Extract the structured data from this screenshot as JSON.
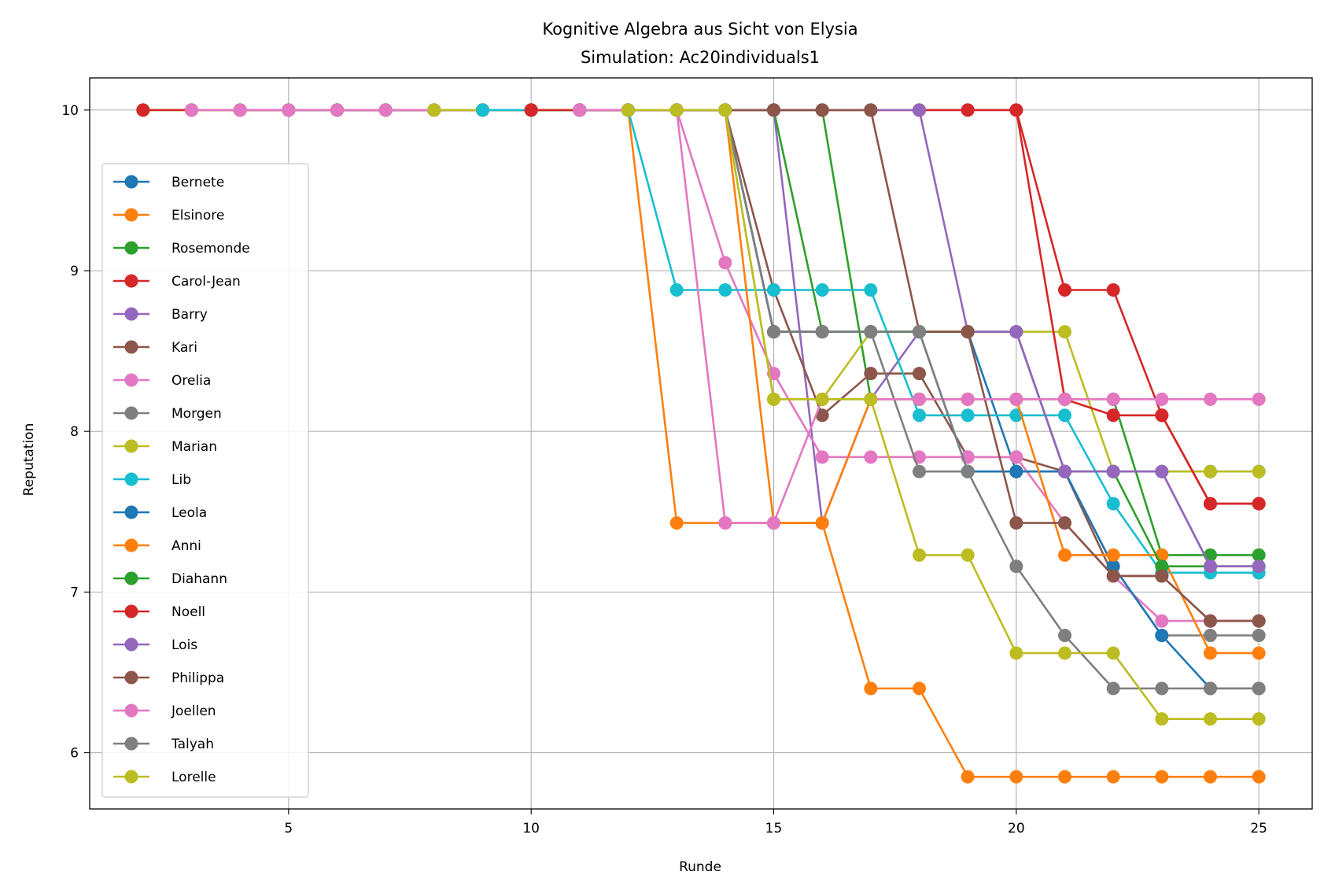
{
  "chart_data": {
    "type": "line",
    "title": "Kognitive Algebra aus Sicht von Elysia",
    "subtitle": "Simulation: Ac20individuals1",
    "xlabel": "Runde",
    "ylabel": "Reputation",
    "xlim": [
      0.9,
      26.1
    ],
    "ylim": [
      5.65,
      10.2
    ],
    "xticks": [
      5,
      10,
      15,
      20,
      25
    ],
    "yticks": [
      6,
      7,
      8,
      9,
      10
    ],
    "grid": true,
    "legend_position": "center-left",
    "series": [
      {
        "name": "Bernete",
        "color": "#1f77b4",
        "x": [
          4,
          5,
          6,
          7,
          8,
          9,
          10,
          11,
          12,
          13,
          14,
          15,
          16,
          17,
          18,
          19,
          20,
          21,
          22,
          23,
          24,
          25
        ],
        "y": [
          10,
          10,
          10,
          10,
          10,
          10,
          10,
          10,
          10,
          10,
          10,
          8.62,
          8.62,
          8.62,
          8.62,
          8.62,
          7.75,
          7.75,
          7.75,
          7.75,
          7.75,
          7.75
        ]
      },
      {
        "name": "Elsinore",
        "color": "#ff7f0e",
        "x": [
          2,
          3,
          4,
          5,
          6,
          7,
          8,
          9,
          10,
          11,
          12,
          13,
          14,
          15,
          16,
          17,
          18,
          19,
          20,
          21,
          22,
          23,
          24,
          25
        ],
        "y": [
          10,
          10,
          10,
          10,
          10,
          10,
          10,
          10,
          10,
          10,
          10,
          7.43,
          7.43,
          7.43,
          7.43,
          6.4,
          6.4,
          5.85,
          5.85,
          5.85,
          5.85,
          5.85,
          5.85,
          5.85
        ]
      },
      {
        "name": "Rosemonde",
        "color": "#2ca02c",
        "x": [
          2,
          3,
          4,
          5,
          6,
          7,
          8,
          9,
          10,
          11,
          12,
          13,
          14,
          15,
          16,
          17,
          18,
          19,
          20,
          21,
          22,
          23,
          24,
          25
        ],
        "y": [
          10,
          10,
          10,
          10,
          10,
          10,
          10,
          10,
          10,
          10,
          10,
          10,
          10,
          10,
          10,
          8.2,
          8.2,
          8.2,
          8.2,
          8.2,
          8.2,
          7.23,
          7.23,
          7.23
        ]
      },
      {
        "name": "Carol-Jean",
        "color": "#d62728",
        "x": [
          2,
          3,
          4,
          5,
          6,
          7,
          8,
          9,
          10,
          11,
          12,
          13,
          14,
          15,
          16,
          17,
          18,
          19,
          20,
          21,
          22,
          23,
          24,
          25
        ],
        "y": [
          10,
          10,
          10,
          10,
          10,
          10,
          10,
          10,
          10,
          10,
          10,
          10,
          10,
          10,
          10,
          10,
          10,
          10,
          10,
          8.88,
          8.88,
          8.1,
          7.55,
          7.55
        ]
      },
      {
        "name": "Barry",
        "color": "#9467bd",
        "x": [
          5,
          6,
          7,
          8,
          9,
          10,
          11,
          12,
          13,
          14,
          15,
          16,
          17,
          18,
          19,
          20,
          21,
          22,
          23,
          24,
          25
        ],
        "y": [
          10,
          10,
          10,
          10,
          10,
          10,
          10,
          10,
          10,
          10,
          10,
          7.43,
          8.2,
          8.62,
          8.62,
          8.62,
          7.75,
          7.75,
          7.75,
          7.16,
          7.16
        ]
      },
      {
        "name": "Kari",
        "color": "#8c564b",
        "x": [
          6,
          7,
          8,
          9,
          10,
          11,
          12,
          13,
          14,
          15,
          16,
          17,
          18,
          19,
          20,
          21,
          22,
          23,
          24,
          25
        ],
        "y": [
          10,
          10,
          10,
          10,
          10,
          10,
          10,
          10,
          10,
          8.88,
          8.1,
          8.36,
          8.36,
          7.84,
          7.84,
          7.75,
          7.1,
          7.1,
          6.82,
          6.82
        ]
      },
      {
        "name": "Orelia",
        "color": "#e377c2",
        "x": [
          3,
          4,
          5,
          6,
          7,
          8,
          9,
          10,
          11,
          12,
          13,
          14,
          15,
          16,
          17,
          18,
          19,
          20,
          21,
          22,
          23,
          24,
          25
        ],
        "y": [
          10,
          10,
          10,
          10,
          10,
          10,
          10,
          10,
          10,
          10,
          10,
          9.05,
          8.36,
          7.84,
          7.84,
          7.84,
          7.84,
          7.84,
          7.43,
          7.1,
          6.82,
          6.82,
          6.82
        ]
      },
      {
        "name": "Morgen",
        "color": "#7f7f7f",
        "x": [
          8,
          9,
          10,
          11,
          12,
          13,
          14,
          15,
          16,
          17,
          18,
          19,
          20,
          21,
          22,
          23,
          24,
          25
        ],
        "y": [
          10,
          10,
          10,
          10,
          10,
          10,
          10,
          8.62,
          8.62,
          8.62,
          7.75,
          7.75,
          7.75,
          7.75,
          7.16,
          6.73,
          6.73,
          6.73
        ]
      },
      {
        "name": "Marian",
        "color": "#bcbd22",
        "x": [
          8,
          9,
          10,
          11,
          12,
          13,
          14,
          15,
          16,
          17,
          18,
          19,
          20,
          21,
          22,
          23,
          24,
          25
        ],
        "y": [
          10,
          10,
          10,
          10,
          10,
          10,
          10,
          8.2,
          8.2,
          8.62,
          8.62,
          8.62,
          8.62,
          8.62,
          7.75,
          7.75,
          7.75,
          7.75
        ]
      },
      {
        "name": "Lib",
        "color": "#17becf",
        "x": [
          9,
          10,
          11,
          12,
          13,
          14,
          15,
          16,
          17,
          18,
          19,
          20,
          21,
          22,
          23,
          24,
          25
        ],
        "y": [
          10,
          10,
          10,
          10,
          8.88,
          8.88,
          8.88,
          8.88,
          8.88,
          8.1,
          8.1,
          8.1,
          8.1,
          7.55,
          7.12,
          7.12,
          7.12
        ]
      },
      {
        "name": "Leola",
        "color": "#1f77b4",
        "x": [
          10,
          11,
          12,
          13,
          14,
          15,
          16,
          17,
          18,
          19,
          20,
          21,
          22,
          23,
          24,
          25
        ],
        "y": [
          10,
          10,
          10,
          10,
          10,
          8.62,
          8.62,
          8.62,
          8.62,
          7.75,
          7.75,
          7.75,
          7.16,
          6.73,
          6.4,
          6.4
        ]
      },
      {
        "name": "Anni",
        "color": "#ff7f0e",
        "x": [
          10,
          11,
          12,
          13,
          14,
          15,
          16,
          17,
          18,
          19,
          20,
          21,
          22,
          23,
          24,
          25
        ],
        "y": [
          10,
          10,
          10,
          10,
          10,
          7.43,
          7.43,
          8.2,
          8.2,
          8.2,
          8.2,
          7.23,
          7.23,
          7.23,
          6.62,
          6.62
        ]
      },
      {
        "name": "Diahann",
        "color": "#2ca02c",
        "x": [
          10,
          11,
          12,
          13,
          14,
          15,
          16,
          17,
          18,
          19,
          20,
          21,
          22,
          23,
          24,
          25
        ],
        "y": [
          10,
          10,
          10,
          10,
          10,
          10,
          8.62,
          8.62,
          8.62,
          8.62,
          8.62,
          7.75,
          7.75,
          7.16,
          7.16,
          7.16
        ]
      },
      {
        "name": "Noell",
        "color": "#d62728",
        "x": [
          10,
          11,
          12,
          13,
          14,
          15,
          16,
          17,
          18,
          19,
          20,
          21,
          22,
          23,
          24,
          25
        ],
        "y": [
          10,
          10,
          10,
          10,
          10,
          10,
          10,
          10,
          10,
          10,
          10,
          8.2,
          8.1,
          8.1,
          7.55,
          7.55
        ]
      },
      {
        "name": "Lois",
        "color": "#9467bd",
        "x": [
          11,
          12,
          13,
          14,
          15,
          16,
          17,
          18,
          19,
          20,
          21,
          22,
          23,
          24,
          25
        ],
        "y": [
          10,
          10,
          10,
          10,
          10,
          10,
          10,
          10,
          8.62,
          8.62,
          7.75,
          7.75,
          7.75,
          7.16,
          7.16
        ]
      },
      {
        "name": "Philippa",
        "color": "#8c564b",
        "x": [
          11,
          12,
          13,
          14,
          15,
          16,
          17,
          18,
          19,
          20,
          21,
          22,
          23,
          24,
          25
        ],
        "y": [
          10,
          10,
          10,
          10,
          10,
          10,
          10,
          8.62,
          8.62,
          7.43,
          7.43,
          7.1,
          7.1,
          6.82,
          6.82
        ]
      },
      {
        "name": "Joellen",
        "color": "#e377c2",
        "x": [
          11,
          12,
          13,
          14,
          15,
          16,
          17,
          18,
          19,
          20,
          21,
          22,
          23,
          24,
          25
        ],
        "y": [
          10,
          10,
          10,
          7.43,
          7.43,
          8.2,
          8.2,
          8.2,
          8.2,
          8.2,
          8.2,
          8.2,
          8.2,
          8.2,
          8.2
        ]
      },
      {
        "name": "Talyah",
        "color": "#7f7f7f",
        "x": [
          12,
          13,
          14,
          15,
          16,
          17,
          18,
          19,
          20,
          21,
          22,
          23,
          24,
          25
        ],
        "y": [
          10,
          10,
          10,
          8.62,
          8.62,
          8.62,
          8.62,
          7.75,
          7.16,
          6.73,
          6.4,
          6.4,
          6.4,
          6.4
        ]
      },
      {
        "name": "Lorelle",
        "color": "#bcbd22",
        "x": [
          12,
          13,
          14,
          15,
          16,
          17,
          18,
          19,
          20,
          21,
          22,
          23,
          24,
          25
        ],
        "y": [
          10,
          10,
          10,
          8.2,
          8.2,
          8.2,
          7.23,
          7.23,
          6.62,
          6.62,
          6.62,
          6.21,
          6.21,
          6.21
        ]
      }
    ]
  }
}
